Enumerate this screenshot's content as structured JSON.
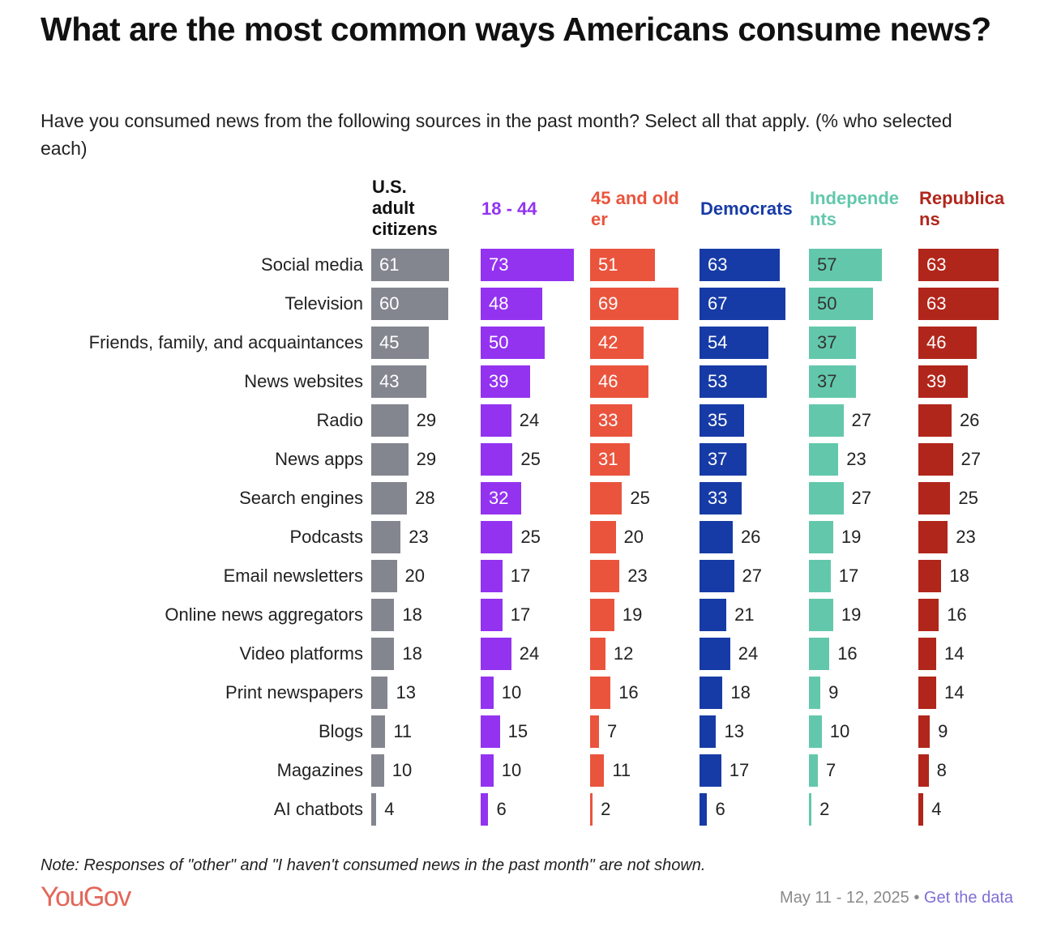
{
  "chart_data": {
    "type": "bar",
    "orientation": "horizontal",
    "title": "What are the most common ways Americans consume news?",
    "subtitle": "Have you consumed news from the following sources in the past month? Select all that apply. (% who selected each)",
    "categories": [
      "Social media",
      "Television",
      "Friends, family, and acquaintances",
      "News websites",
      "Radio",
      "News apps",
      "Search engines",
      "Podcasts",
      "Email newsletters",
      "Online news aggregators",
      "Video platforms",
      "Print newspapers",
      "Blogs",
      "Magazines",
      "AI chatbots"
    ],
    "series": [
      {
        "name": "U.S. adult citizens",
        "color": "#84868f",
        "label_color": "#111111",
        "values": [
          61,
          60,
          45,
          43,
          29,
          29,
          28,
          23,
          20,
          18,
          18,
          13,
          11,
          10,
          4
        ]
      },
      {
        "name": "18 - 44",
        "color": "#9333f0",
        "label_color": "#9333f0",
        "values": [
          73,
          48,
          50,
          39,
          24,
          25,
          32,
          25,
          17,
          17,
          24,
          10,
          15,
          10,
          6
        ]
      },
      {
        "name": "45 and older",
        "color": "#ea543d",
        "label_color": "#ea543d",
        "values": [
          51,
          69,
          42,
          46,
          33,
          31,
          25,
          20,
          23,
          19,
          12,
          16,
          7,
          11,
          2
        ]
      },
      {
        "name": "Democrats",
        "color": "#173ba6",
        "label_color": "#173ba6",
        "values": [
          63,
          67,
          54,
          53,
          35,
          37,
          33,
          26,
          27,
          21,
          24,
          18,
          13,
          17,
          6
        ]
      },
      {
        "name": "Independents",
        "color": "#63c8ab",
        "label_color": "#63c8ab",
        "values": [
          57,
          50,
          37,
          37,
          27,
          23,
          27,
          19,
          17,
          19,
          16,
          9,
          10,
          7,
          2
        ]
      },
      {
        "name": "Republicans",
        "color": "#b1261b",
        "label_color": "#b1261b",
        "values": [
          63,
          63,
          46,
          39,
          26,
          27,
          25,
          23,
          18,
          16,
          14,
          14,
          9,
          8,
          4
        ]
      }
    ],
    "header_labels": [
      "U.S. adult citizens",
      "18 - 44",
      "45 and older",
      "Democrats",
      "Independe nts",
      "Republica ns"
    ]
  },
  "note": "Note: Responses of \"other\" and \"I haven't consumed news in the past month\" are not shown.",
  "logo": "YouGov",
  "date": "May 11 - 12, 2025",
  "separator": "•",
  "link": "Get the data"
}
